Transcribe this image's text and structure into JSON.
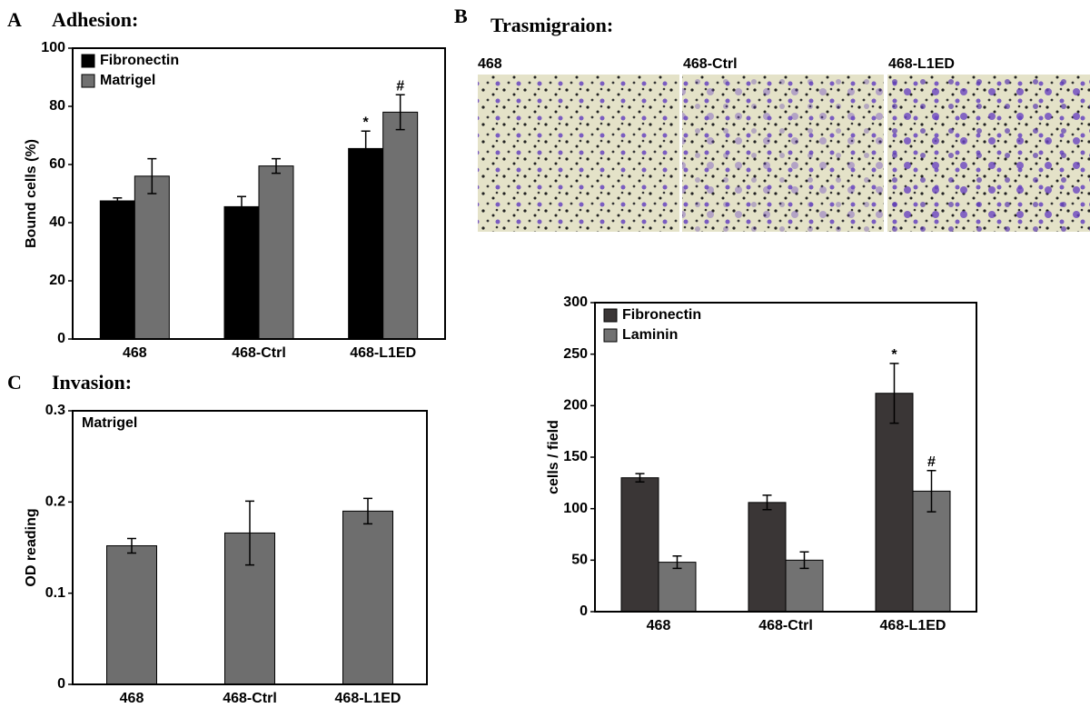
{
  "figure": {
    "panels": [
      {
        "letter": "A",
        "heading": "Adhesion:"
      },
      {
        "letter": "B",
        "heading": "Trasmigraion:"
      },
      {
        "letter": "C",
        "heading": "Invasion:"
      }
    ],
    "images": [
      "468",
      "468-Ctrl",
      "468-L1ED"
    ]
  },
  "chart_data": [
    {
      "type": "bar",
      "ylabel": "Bound cells (%)",
      "categories": [
        "468",
        "468-Ctrl",
        "468-L1ED"
      ],
      "series": [
        {
          "name": "Fibronectin",
          "color": "#000000",
          "values": [
            47.5,
            45.5,
            65.5
          ],
          "errors": [
            1,
            3.5,
            6
          ],
          "markers": [
            null,
            null,
            "*"
          ]
        },
        {
          "name": "Matrigel",
          "color": "#707070",
          "values": [
            56,
            59.5,
            78
          ],
          "errors": [
            6,
            2.5,
            6
          ],
          "markers": [
            null,
            null,
            "#"
          ]
        }
      ],
      "ylim": [
        0,
        100
      ],
      "yticks": [
        0,
        20,
        40,
        60,
        80,
        100
      ],
      "legend": "upper left"
    },
    {
      "type": "bar",
      "ylabel": "cells / field",
      "categories": [
        "468",
        "468-Ctrl",
        "468-L1ED"
      ],
      "series": [
        {
          "name": "Fibronectin",
          "color": "#3a3636",
          "values": [
            130,
            106,
            212
          ],
          "errors": [
            4,
            7,
            29
          ],
          "markers": [
            null,
            null,
            "*"
          ]
        },
        {
          "name": "Laminin",
          "color": "#727272",
          "values": [
            48,
            50,
            117
          ],
          "errors": [
            6,
            8,
            20
          ],
          "markers": [
            null,
            null,
            "#"
          ]
        }
      ],
      "ylim": [
        0,
        300
      ],
      "yticks": [
        0,
        50,
        100,
        150,
        200,
        250,
        300
      ],
      "legend": "upper left"
    },
    {
      "type": "bar",
      "ylabel": "OD reading",
      "categories": [
        "468",
        "468-Ctrl",
        "468-L1ED"
      ],
      "series": [
        {
          "name": "Matrigel",
          "color": "#6e6e6e",
          "values": [
            0.152,
            0.166,
            0.19
          ],
          "errors": [
            0.008,
            0.035,
            0.014
          ]
        }
      ],
      "ylim": [
        0,
        0.3
      ],
      "yticks": [
        0,
        0.1,
        0.2,
        0.3
      ],
      "legend": "upper left"
    }
  ]
}
